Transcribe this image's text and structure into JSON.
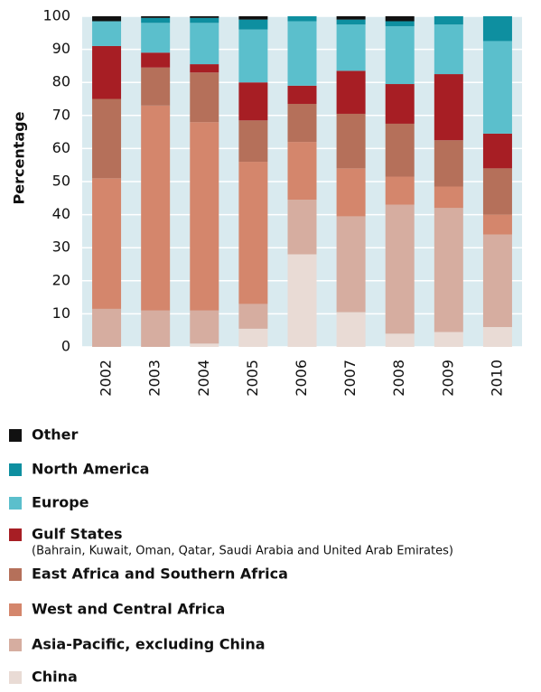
{
  "chart_data": {
    "type": "stacked_bar",
    "y_label": "Percentage",
    "categories": [
      "2002",
      "2003",
      "2004",
      "2005",
      "2006",
      "2007",
      "2008",
      "2009",
      "2010"
    ],
    "ylim": [
      0,
      100
    ],
    "yticks": [
      0,
      10,
      20,
      30,
      40,
      50,
      60,
      70,
      80,
      90,
      100
    ],
    "grid": true,
    "series": [
      {
        "name": "China",
        "color": "#e9dbd5",
        "values": [
          0,
          0,
          1,
          5.5,
          28,
          10.5,
          4,
          4.5,
          6
        ]
      },
      {
        "name": "Asia-Pacific, excluding China",
        "color": "#d6ada0",
        "values": [
          11.5,
          11,
          10,
          7.5,
          16.5,
          29,
          39,
          37.5,
          28
        ]
      },
      {
        "name": "West and Central Africa",
        "color": "#d4866c",
        "values": [
          39.5,
          62,
          57,
          43,
          17.5,
          14.5,
          8.5,
          6.5,
          6
        ]
      },
      {
        "name": "East Africa and Southern Africa",
        "color": "#b5705a",
        "values": [
          24,
          11.5,
          15,
          12.5,
          11.5,
          16.5,
          16,
          14,
          14
        ]
      },
      {
        "name": "Gulf States",
        "note": "(Bahrain, Kuwait, Oman, Qatar, Saudi Arabia and United Arab Emirates)",
        "color": "#a71e24",
        "values": [
          16,
          4.5,
          2.5,
          11.5,
          5.5,
          13,
          12,
          20,
          10.5
        ]
      },
      {
        "name": "Europe",
        "color": "#5bbfcc",
        "values": [
          7.5,
          9,
          12.5,
          16,
          19.5,
          14,
          17.5,
          15,
          28
        ]
      },
      {
        "name": "North America",
        "color": "#0e8fa0",
        "values": [
          0,
          1.5,
          1.5,
          3,
          1.5,
          1.5,
          1.5,
          2.5,
          7.5
        ]
      },
      {
        "name": "Other",
        "color": "#111111",
        "values": [
          1.5,
          0.5,
          0.5,
          1,
          0,
          1,
          1.5,
          0,
          0
        ]
      }
    ]
  }
}
